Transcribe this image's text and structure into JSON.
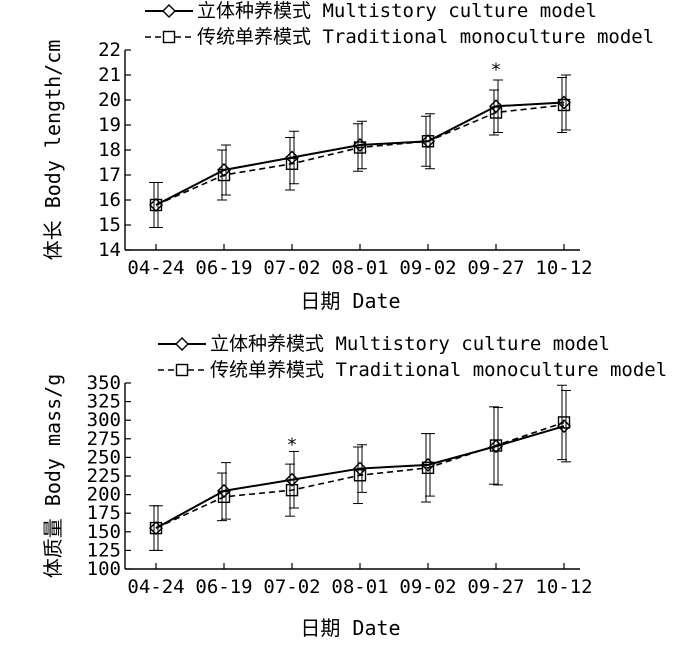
{
  "chart_data": [
    {
      "type": "line",
      "x": [
        "04-24",
        "06-19",
        "07-02",
        "08-01",
        "09-02",
        "09-27",
        "10-12"
      ],
      "xlabel": "日期 Date",
      "ylabel": "体长 Body length/cm",
      "ylim": [
        14,
        22
      ],
      "yticks": [
        14,
        15,
        16,
        17,
        18,
        19,
        20,
        21,
        22
      ],
      "grid": false,
      "legend": "top",
      "series": [
        {
          "name": "立体种养模式 Multistory culture model",
          "marker": "diamond",
          "line": "solid",
          "values": [
            15.8,
            17.2,
            17.7,
            18.2,
            18.35,
            19.75,
            19.9
          ],
          "errors": [
            0.9,
            1.0,
            1.05,
            0.95,
            1.1,
            1.05,
            1.1
          ]
        },
        {
          "name": "传统单养模式 Traditional monoculture model",
          "marker": "square",
          "line": "dashed",
          "values": [
            15.8,
            17.0,
            17.45,
            18.1,
            18.35,
            19.5,
            19.8
          ],
          "errors": [
            0.9,
            1.0,
            1.05,
            0.95,
            1.0,
            0.9,
            1.1
          ]
        }
      ],
      "annotations": [
        {
          "x": "09-27",
          "text": "*",
          "y": 21.3
        }
      ]
    },
    {
      "type": "line",
      "x": [
        "04-24",
        "06-19",
        "07-02",
        "08-01",
        "09-02",
        "09-27",
        "10-12"
      ],
      "xlabel": "日期 Date",
      "ylabel": "体质量 Body mass/g",
      "ylim": [
        100,
        350
      ],
      "yticks": [
        100,
        125,
        150,
        175,
        200,
        225,
        250,
        275,
        300,
        325,
        350
      ],
      "grid": false,
      "legend": "top",
      "series": [
        {
          "name": "立体种养模式 Multistory culture model",
          "marker": "diamond",
          "line": "solid",
          "values": [
            155,
            205,
            220,
            235,
            240,
            265,
            292
          ],
          "errors": [
            30,
            38,
            38,
            32,
            42,
            52,
            48
          ]
        },
        {
          "name": "传统单养模式 Traditional monoculture model",
          "marker": "square",
          "line": "dashed",
          "values": [
            155,
            197,
            206,
            226,
            236,
            266,
            297
          ],
          "errors": [
            30,
            32,
            35,
            38,
            46,
            52,
            50
          ]
        }
      ],
      "annotations": [
        {
          "x": "07-02",
          "text": "*",
          "y": 270
        }
      ]
    }
  ]
}
